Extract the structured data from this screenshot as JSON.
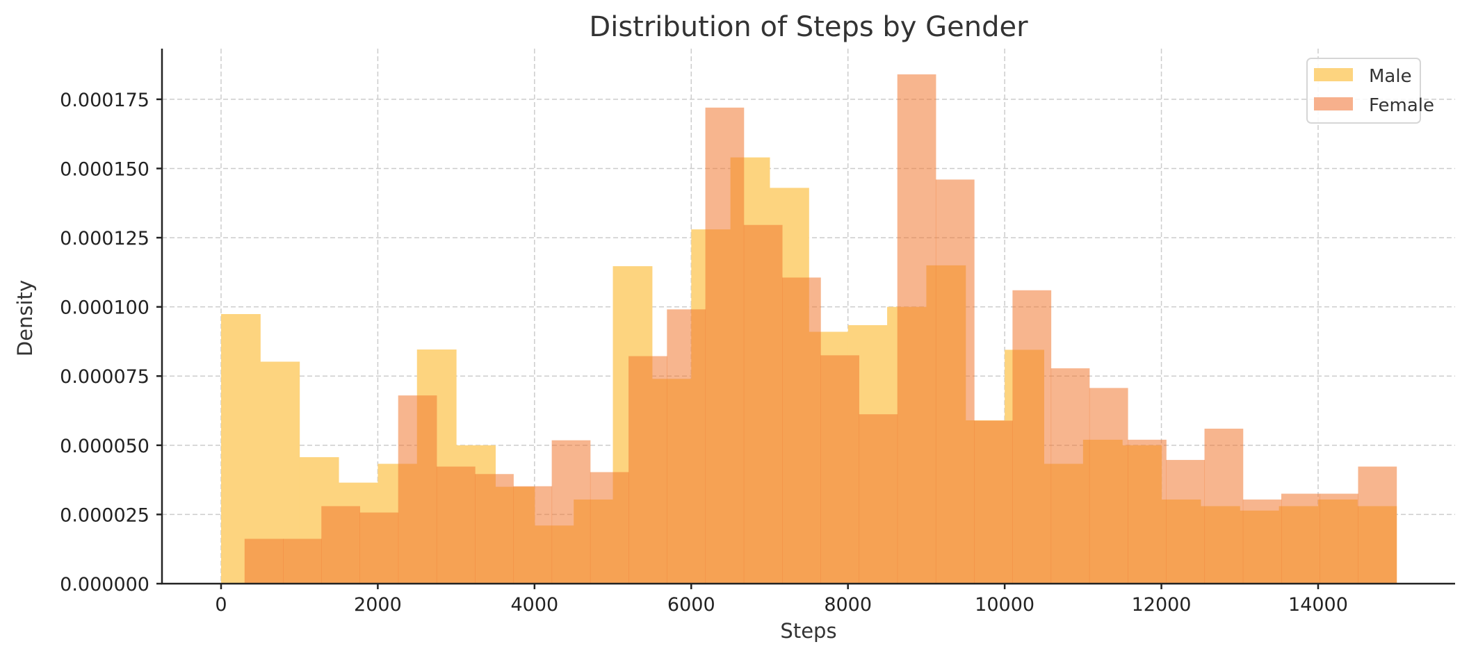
{
  "chart_data": {
    "type": "histogram",
    "title": "Distribution of Steps by Gender",
    "xlabel": "Steps",
    "ylabel": "Density",
    "xlim": [
      -754,
      15748
    ],
    "ylim": [
      0,
      0.0001933
    ],
    "grid": true,
    "legend_position": "top-right",
    "xticks": [
      0,
      2000,
      4000,
      6000,
      8000,
      10000,
      12000,
      14000
    ],
    "xtick_labels": [
      "0",
      "2000",
      "4000",
      "6000",
      "8000",
      "10000",
      "12000",
      "14000"
    ],
    "yticks": [
      0,
      2.5e-05,
      5e-05,
      7.5e-05,
      0.0001,
      0.000125,
      0.00015,
      0.000175
    ],
    "ytick_labels": [
      "0.000000",
      "0.000025",
      "0.000050",
      "0.000075",
      "0.000100",
      "0.000125",
      "0.000150",
      "0.000175"
    ],
    "series": [
      {
        "name": "Male",
        "color": "#FDD47F",
        "bin_start": 0,
        "bin_width": 500,
        "values": [
          9.74e-05,
          8.02e-05,
          4.57e-05,
          3.65e-05,
          4.33e-05,
          8.46e-05,
          5e-05,
          3.5e-05,
          2.1e-05,
          3.04e-05,
          0.0001147,
          7.4e-05,
          0.000128,
          0.000154,
          0.000143,
          9.1e-05,
          9.34e-05,
          0.0001,
          0.000115,
          5.9e-05,
          8.45e-05,
          4.33e-05,
          5.2e-05,
          5e-05,
          3.04e-05,
          2.8e-05,
          2.64e-05,
          2.8e-05,
          3.04e-05,
          2.8e-05
        ]
      },
      {
        "name": "Female",
        "color": "#F7B08C",
        "bin_start": 300,
        "bin_width": 490,
        "values": [
          1.62e-05,
          1.62e-05,
          2.8e-05,
          2.57e-05,
          6.8e-05,
          4.23e-05,
          3.96e-05,
          3.52e-05,
          5.18e-05,
          4.03e-05,
          8.22e-05,
          9.91e-05,
          0.000172,
          0.0001296,
          0.0001106,
          8.25e-05,
          6.12e-05,
          0.000184,
          0.000146,
          5.89e-05,
          0.000106,
          7.78e-05,
          7.07e-05,
          5.2e-05,
          4.47e-05,
          5.6e-05,
          3.04e-05,
          3.25e-05,
          3.25e-05,
          4.23e-05
        ]
      }
    ]
  }
}
